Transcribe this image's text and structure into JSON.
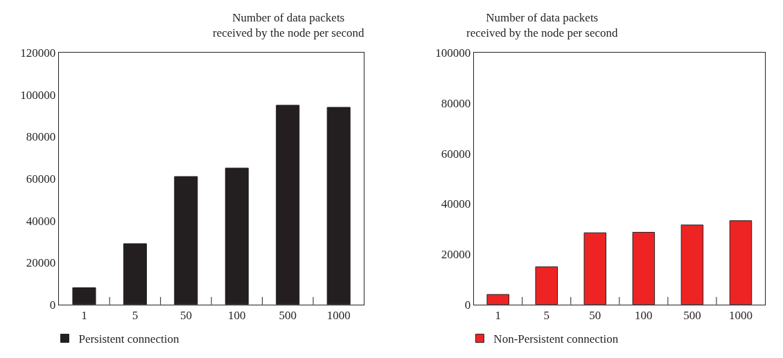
{
  "chart_data": [
    {
      "type": "bar",
      "title": "Number of data packets\nreceived by the node per second",
      "categories": [
        "1",
        "5",
        "50",
        "100",
        "500",
        "1000"
      ],
      "ylim": [
        0,
        120000
      ],
      "yticks": [
        0,
        20000,
        40000,
        60000,
        80000,
        100000,
        120000
      ],
      "legend": "bottom left",
      "series": [
        {
          "name": "Persistent connection",
          "color": "#231f20",
          "values": [
            8000,
            29000,
            61000,
            65000,
            95000,
            94000
          ]
        }
      ]
    },
    {
      "type": "bar",
      "title": "Number of data packets\nreceived by the node per second",
      "categories": [
        "1",
        "5",
        "50",
        "100",
        "500",
        "1000"
      ],
      "ylim": [
        0,
        100000
      ],
      "yticks": [
        0,
        20000,
        40000,
        60000,
        80000,
        100000
      ],
      "legend": "bottom left",
      "series": [
        {
          "name": "Non-Persistent connection",
          "color": "#ee2324",
          "values": [
            4000,
            15000,
            28500,
            28700,
            31600,
            33300
          ]
        }
      ]
    }
  ]
}
